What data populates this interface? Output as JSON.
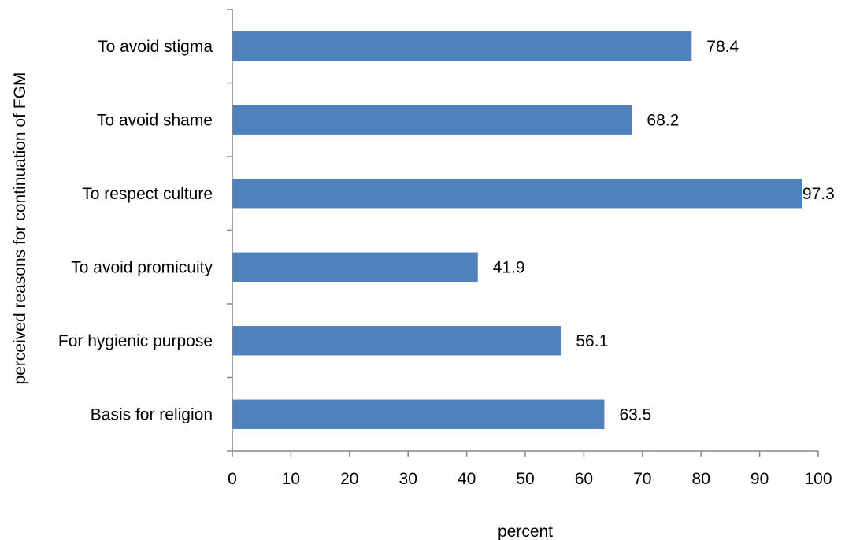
{
  "chart_data": {
    "type": "bar",
    "orientation": "horizontal",
    "title": "",
    "xlabel": "percent",
    "ylabel": "perceived  reasons for continuation of FGM",
    "xlim": [
      0,
      100
    ],
    "xticks": [
      0,
      10,
      20,
      30,
      40,
      50,
      60,
      70,
      80,
      90,
      100
    ],
    "categories": [
      "To avoid stigma",
      "To avoid shame",
      "To respect culture",
      "To avoid promicuity",
      "For hygienic purpose",
      "Basis for religion"
    ],
    "values": [
      78.4,
      68.2,
      97.3,
      41.9,
      56.1,
      63.5
    ],
    "data_labels": [
      "78.4",
      "68.2",
      "97.3",
      "41.9",
      "56.1",
      "63.5"
    ],
    "bar_color": "#4f81bd",
    "grid": false,
    "legend": "none"
  }
}
